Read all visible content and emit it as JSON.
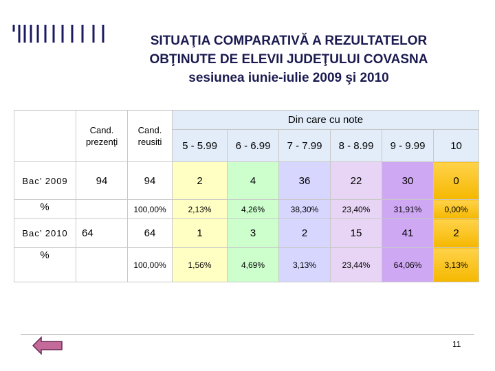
{
  "title": [
    "SITUAŢIA COMPARATIVĂ A REZULTATELOR",
    "OBŢINUTE DE ELEVII JUDEŢULUI COVASNA",
    "sesiunea iunie-iulie 2009 şi 2010"
  ],
  "table": {
    "group": "Din care cu note",
    "columns": [
      "Cand. prezenţi",
      "Cand. reusiti",
      "5 - 5.99",
      "6 - 6.99",
      "7 - 7.99",
      "8 - 8.99",
      "9 - 9.99",
      "10"
    ],
    "rows": [
      [
        "Bac’ 2009",
        "94",
        "94",
        "2",
        "4",
        "36",
        "22",
        "30",
        "0"
      ],
      [
        "%",
        null,
        "100,00%",
        "2,13%",
        "4,26%",
        "38,30%",
        "23,40%",
        "31,91%",
        "0,00%"
      ],
      [
        "Bac’ 2010",
        "64",
        "64",
        "1",
        "3",
        "2",
        "15",
        "41",
        "2"
      ],
      [
        "%",
        null,
        "100,00%",
        "1,56%",
        "4,69%",
        "3,13%",
        "23,44%",
        "64,06%",
        "3,13%"
      ]
    ]
  },
  "page_number": "11"
}
